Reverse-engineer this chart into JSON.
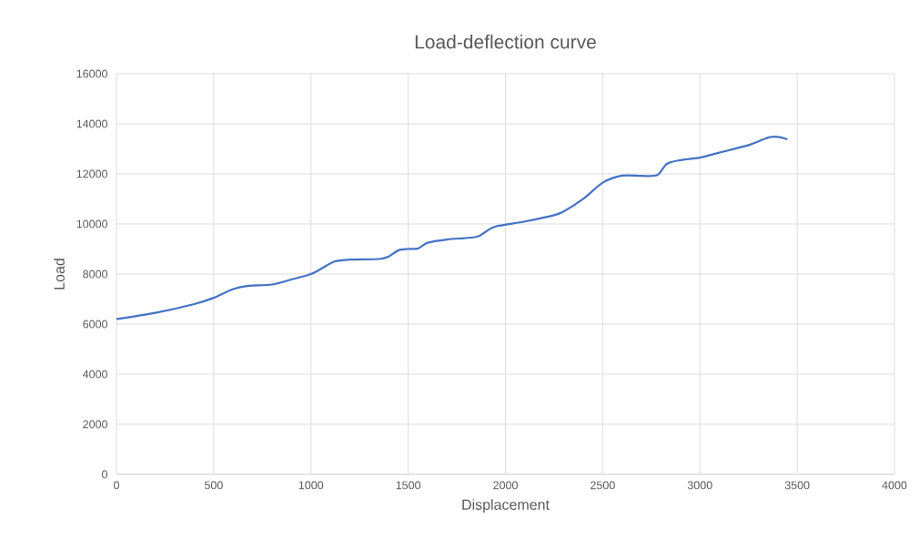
{
  "chart_data": {
    "type": "line",
    "title": "Load-deflection curve",
    "xlabel": "Displacement",
    "ylabel": "Load",
    "x": [
      0,
      200,
      400,
      500,
      600,
      680,
      800,
      900,
      1000,
      1050,
      1120,
      1200,
      1350,
      1400,
      1450,
      1500,
      1550,
      1600,
      1700,
      1850,
      1900,
      1950,
      2100,
      2250,
      2300,
      2400,
      2500,
      2600,
      2700,
      2780,
      2830,
      2900,
      3000,
      3100,
      3250,
      3350,
      3400,
      3450
    ],
    "series": [
      {
        "color": "#4472c4",
        "values": [
          6200,
          6450,
          6800,
          7050,
          7400,
          7530,
          7580,
          7780,
          8000,
          8200,
          8500,
          8580,
          8600,
          8700,
          8950,
          9000,
          9020,
          9250,
          9380,
          9480,
          9700,
          9900,
          10100,
          10350,
          10500,
          11000,
          11650,
          11930,
          11920,
          11950,
          12400,
          12550,
          12650,
          12850,
          13150,
          13450,
          13480,
          13380
        ]
      }
    ],
    "xlim": [
      0,
      4000
    ],
    "xticks": [
      0,
      500,
      1000,
      1500,
      2000,
      2500,
      3000,
      3500,
      4000
    ],
    "ylim": [
      0,
      16000
    ],
    "yticks": [
      0,
      2000,
      4000,
      6000,
      8000,
      10000,
      12000,
      14000,
      16000
    ],
    "grid": true
  }
}
